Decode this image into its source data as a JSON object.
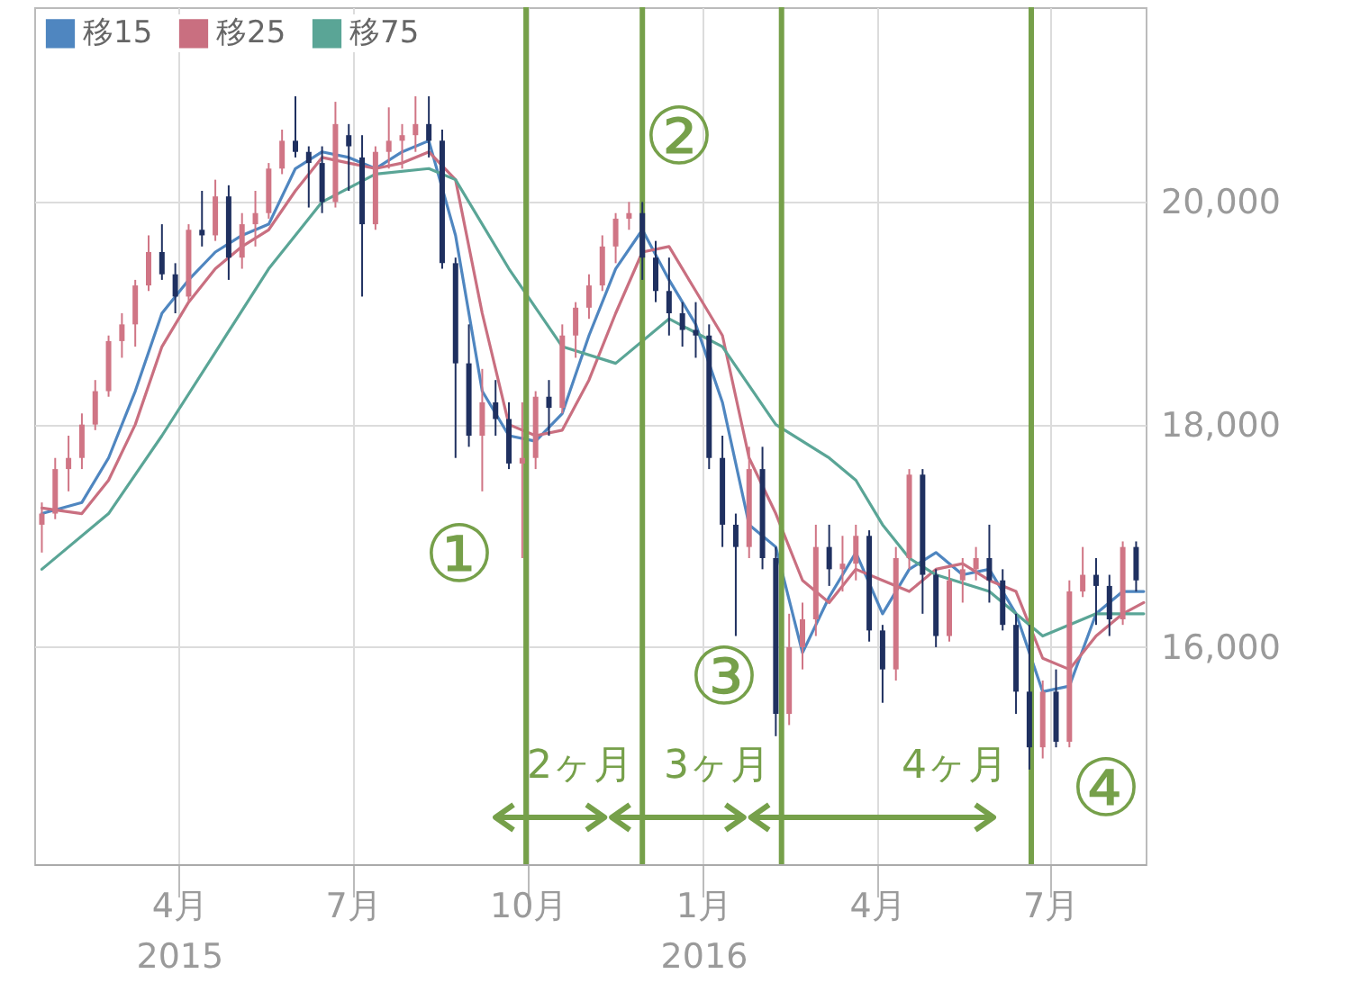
{
  "chart_data": {
    "type": "candlestick",
    "x": [
      "2015-01-19",
      "2015-01-26",
      "2015-02-02",
      "2015-02-09",
      "2015-02-16",
      "2015-02-23",
      "2015-03-02",
      "2015-03-09",
      "2015-03-16",
      "2015-03-23",
      "2015-03-30",
      "2015-04-06",
      "2015-04-13",
      "2015-04-20",
      "2015-04-27",
      "2015-05-04",
      "2015-05-11",
      "2015-05-18",
      "2015-05-25",
      "2015-06-01",
      "2015-06-08",
      "2015-06-15",
      "2015-06-22",
      "2015-06-29",
      "2015-07-06",
      "2015-07-13",
      "2015-07-20",
      "2015-07-27",
      "2015-08-03",
      "2015-08-10",
      "2015-08-17",
      "2015-08-24",
      "2015-08-31",
      "2015-09-07",
      "2015-09-14",
      "2015-09-21",
      "2015-09-28",
      "2015-10-05",
      "2015-10-12",
      "2015-10-19",
      "2015-10-26",
      "2015-11-02",
      "2015-11-09",
      "2015-11-16",
      "2015-11-23",
      "2015-11-30",
      "2015-12-07",
      "2015-12-14",
      "2015-12-21",
      "2015-12-28",
      "2016-01-04",
      "2016-01-11",
      "2016-01-18",
      "2016-01-25",
      "2016-02-01",
      "2016-02-08",
      "2016-02-15",
      "2016-02-22",
      "2016-02-29",
      "2016-03-07",
      "2016-03-14",
      "2016-03-21",
      "2016-03-28",
      "2016-04-04",
      "2016-04-11",
      "2016-04-18",
      "2016-04-25",
      "2016-05-02",
      "2016-05-09",
      "2016-05-16",
      "2016-05-23",
      "2016-05-30",
      "2016-06-06",
      "2016-06-13",
      "2016-06-20",
      "2016-06-27",
      "2016-07-04",
      "2016-07-11",
      "2016-07-18",
      "2016-07-25",
      "2016-08-01",
      "2016-08-08",
      "2016-08-15"
    ],
    "ohlc": [
      [
        17100,
        17300,
        16850,
        17200
      ],
      [
        17200,
        17700,
        17150,
        17600
      ],
      [
        17600,
        17900,
        17400,
        17700
      ],
      [
        17700,
        18100,
        17600,
        18000
      ],
      [
        18000,
        18400,
        17950,
        18300
      ],
      [
        18300,
        18800,
        18250,
        18750
      ],
      [
        18750,
        19000,
        18600,
        18900
      ],
      [
        18900,
        19300,
        18700,
        19250
      ],
      [
        19250,
        19700,
        19200,
        19550
      ],
      [
        19550,
        19800,
        19300,
        19350
      ],
      [
        19350,
        19450,
        19000,
        19150
      ],
      [
        19150,
        19800,
        19100,
        19750
      ],
      [
        19750,
        20100,
        19600,
        19700
      ],
      [
        19700,
        20200,
        19650,
        20050
      ],
      [
        20050,
        20150,
        19300,
        19500
      ],
      [
        19500,
        19900,
        19400,
        19800
      ],
      [
        19800,
        20100,
        19600,
        19900
      ],
      [
        19900,
        20350,
        19850,
        20300
      ],
      [
        20300,
        20650,
        20250,
        20550
      ],
      [
        20550,
        20950,
        20400,
        20450
      ],
      [
        20450,
        20500,
        19950,
        20350
      ],
      [
        20350,
        20500,
        19900,
        20000
      ],
      [
        20000,
        20900,
        19950,
        20700
      ],
      [
        20600,
        20700,
        20100,
        20500
      ],
      [
        20400,
        20600,
        19150,
        19800
      ],
      [
        19800,
        20500,
        19750,
        20450
      ],
      [
        20450,
        20850,
        20300,
        20550
      ],
      [
        20550,
        20700,
        20300,
        20600
      ],
      [
        20600,
        20950,
        20450,
        20700
      ],
      [
        20700,
        20950,
        20400,
        20550
      ],
      [
        20550,
        20650,
        19400,
        19450
      ],
      [
        19450,
        19500,
        17700,
        18550
      ],
      [
        18550,
        18900,
        17800,
        17900
      ],
      [
        17900,
        18500,
        17400,
        18200
      ],
      [
        18200,
        18400,
        17900,
        18050
      ],
      [
        18050,
        18200,
        17600,
        17650
      ],
      [
        17650,
        18200,
        16800,
        17700
      ],
      [
        17700,
        18300,
        17600,
        18250
      ],
      [
        18250,
        18400,
        17900,
        18150
      ],
      [
        18150,
        18900,
        18100,
        18800
      ],
      [
        18800,
        19100,
        18600,
        19050
      ],
      [
        19050,
        19350,
        18950,
        19250
      ],
      [
        19250,
        19700,
        19200,
        19600
      ],
      [
        19600,
        19900,
        19450,
        19850
      ],
      [
        19850,
        20000,
        19750,
        19900
      ],
      [
        19900,
        20000,
        19300,
        19500
      ],
      [
        19500,
        19650,
        19100,
        19200
      ],
      [
        19200,
        19500,
        18800,
        19000
      ],
      [
        19000,
        19100,
        18700,
        18850
      ],
      [
        18850,
        19100,
        18600,
        18800
      ],
      [
        18800,
        18900,
        17600,
        17700
      ],
      [
        17700,
        17900,
        16900,
        17100
      ],
      [
        17100,
        17200,
        16100,
        16900
      ],
      [
        16900,
        17800,
        16800,
        17600
      ],
      [
        17600,
        17800,
        16700,
        16800
      ],
      [
        16800,
        16900,
        15200,
        15400
      ],
      [
        15400,
        16300,
        15300,
        16000
      ],
      [
        16000,
        16400,
        15800,
        16250
      ],
      [
        16250,
        17100,
        16100,
        16900
      ],
      [
        16900,
        17100,
        16550,
        16700
      ],
      [
        16700,
        17000,
        16500,
        16750
      ],
      [
        16750,
        17100,
        16600,
        17000
      ],
      [
        17000,
        17050,
        16050,
        16150
      ],
      [
        16150,
        16200,
        15500,
        15800
      ],
      [
        15800,
        16900,
        15700,
        16800
      ],
      [
        16800,
        17600,
        16700,
        17550
      ],
      [
        17550,
        17600,
        16300,
        16650
      ],
      [
        16650,
        16700,
        16000,
        16100
      ],
      [
        16100,
        16700,
        16050,
        16600
      ],
      [
        16600,
        16800,
        16400,
        16700
      ],
      [
        16700,
        16900,
        16600,
        16800
      ],
      [
        16800,
        17100,
        16400,
        16600
      ],
      [
        16600,
        16700,
        16150,
        16200
      ],
      [
        16200,
        16300,
        15400,
        15600
      ],
      [
        15600,
        16200,
        14900,
        15100
      ],
      [
        15100,
        15700,
        15000,
        15600
      ],
      [
        15600,
        15800,
        15100,
        15150
      ],
      [
        15150,
        16600,
        15100,
        16500
      ],
      [
        16500,
        16900,
        16450,
        16650
      ],
      [
        16650,
        16800,
        16200,
        16550
      ],
      [
        16550,
        16650,
        16100,
        16250
      ],
      [
        16250,
        16950,
        16200,
        16900
      ],
      [
        16900,
        16950,
        16500,
        16600
      ]
    ],
    "colors": [
      "#d07585",
      "#d07585",
      "#d07585",
      "#d07585",
      "#d07585",
      "#d07585",
      "#d07585",
      "#d07585",
      "#d07585",
      "#1f3060",
      "#1f3060",
      "#d07585",
      "#1f3060",
      "#d07585",
      "#1f3060",
      "#d07585",
      "#d07585",
      "#d07585",
      "#d07585",
      "#1f3060",
      "#1f3060",
      "#1f3060",
      "#d07585",
      "#1f3060",
      "#1f3060",
      "#d07585",
      "#d07585",
      "#d07585",
      "#d07585",
      "#1f3060",
      "#1f3060",
      "#1f3060",
      "#1f3060",
      "#d07585",
      "#1f3060",
      "#1f3060",
      "#d07585",
      "#d07585",
      "#1f3060",
      "#d07585",
      "#d07585",
      "#d07585",
      "#d07585",
      "#d07585",
      "#d07585",
      "#1f3060",
      "#1f3060",
      "#1f3060",
      "#1f3060",
      "#1f3060",
      "#1f3060",
      "#1f3060",
      "#1f3060",
      "#d07585",
      "#1f3060",
      "#1f3060",
      "#d07585",
      "#d07585",
      "#d07585",
      "#1f3060",
      "#d07585",
      "#d07585",
      "#1f3060",
      "#1f3060",
      "#d07585",
      "#d07585",
      "#1f3060",
      "#1f3060",
      "#d07585",
      "#d07585",
      "#d07585",
      "#1f3060",
      "#1f3060",
      "#1f3060",
      "#1f3060",
      "#d07585",
      "#1f3060",
      "#d07585",
      "#d07585",
      "#1f3060",
      "#1f3060",
      "#d07585",
      "#1f3060"
    ],
    "series": [
      {
        "name": "移15",
        "type": "line",
        "color": "#4f86c0",
        "x": [
          "2015-01-19",
          "2015-02-09",
          "2015-02-23",
          "2015-03-09",
          "2015-03-23",
          "2015-04-06",
          "2015-04-20",
          "2015-05-04",
          "2015-05-18",
          "2015-06-01",
          "2015-06-15",
          "2015-06-29",
          "2015-07-13",
          "2015-07-27",
          "2015-08-10",
          "2015-08-24",
          "2015-09-07",
          "2015-09-21",
          "2015-10-05",
          "2015-10-19",
          "2015-11-02",
          "2015-11-16",
          "2015-11-30",
          "2015-12-14",
          "2015-12-28",
          "2016-01-11",
          "2016-01-25",
          "2016-02-08",
          "2016-02-22",
          "2016-03-07",
          "2016-03-21",
          "2016-04-04",
          "2016-04-18",
          "2016-05-02",
          "2016-05-16",
          "2016-05-30",
          "2016-06-13",
          "2016-06-27",
          "2016-07-11",
          "2016-07-25",
          "2016-08-08",
          "2016-08-19"
        ],
        "values": [
          17200,
          17300,
          17700,
          18300,
          19000,
          19300,
          19550,
          19700,
          19800,
          20300,
          20450,
          20400,
          20300,
          20450,
          20550,
          19700,
          18300,
          17900,
          17850,
          18100,
          18800,
          19400,
          19750,
          19300,
          18900,
          18200,
          17100,
          16900,
          15950,
          16450,
          16850,
          16300,
          16700,
          16850,
          16650,
          16700,
          16300,
          15600,
          15650,
          16300,
          16500,
          16500
        ]
      },
      {
        "name": "移25",
        "type": "line",
        "color": "#c96f80",
        "x": [
          "2015-01-19",
          "2015-02-09",
          "2015-02-23",
          "2015-03-09",
          "2015-03-23",
          "2015-04-06",
          "2015-04-20",
          "2015-05-04",
          "2015-05-18",
          "2015-06-01",
          "2015-06-15",
          "2015-06-29",
          "2015-07-13",
          "2015-07-27",
          "2015-08-10",
          "2015-08-24",
          "2015-09-07",
          "2015-09-21",
          "2015-10-05",
          "2015-10-19",
          "2015-11-02",
          "2015-11-16",
          "2015-11-30",
          "2015-12-14",
          "2015-12-28",
          "2016-01-11",
          "2016-01-25",
          "2016-02-08",
          "2016-02-22",
          "2016-03-07",
          "2016-03-21",
          "2016-04-04",
          "2016-04-18",
          "2016-05-02",
          "2016-05-16",
          "2016-05-30",
          "2016-06-13",
          "2016-06-27",
          "2016-07-11",
          "2016-07-25",
          "2016-08-08",
          "2016-08-19"
        ],
        "values": [
          17250,
          17200,
          17500,
          18000,
          18700,
          19100,
          19400,
          19600,
          19750,
          20100,
          20400,
          20350,
          20300,
          20350,
          20450,
          20200,
          19000,
          18000,
          17900,
          17950,
          18400,
          19000,
          19550,
          19600,
          19200,
          18800,
          17700,
          17200,
          16600,
          16400,
          16700,
          16600,
          16500,
          16700,
          16750,
          16600,
          16500,
          15900,
          15800,
          16100,
          16300,
          16400
        ]
      },
      {
        "name": "移75",
        "type": "line",
        "color": "#5aa596",
        "x": [
          "2015-01-19",
          "2015-02-23",
          "2015-03-23",
          "2015-04-20",
          "2015-05-18",
          "2015-06-15",
          "2015-07-13",
          "2015-08-10",
          "2015-08-24",
          "2015-09-21",
          "2015-10-19",
          "2015-11-16",
          "2015-12-14",
          "2016-01-11",
          "2016-02-08",
          "2016-03-07",
          "2016-03-21",
          "2016-04-04",
          "2016-04-18",
          "2016-05-02",
          "2016-05-30",
          "2016-06-27",
          "2016-07-25",
          "2016-08-19"
        ],
        "values": [
          16700,
          17200,
          17900,
          18650,
          19400,
          20000,
          20250,
          20300,
          20200,
          19400,
          18700,
          18550,
          18950,
          18700,
          18000,
          17700,
          17500,
          17100,
          16800,
          16650,
          16500,
          16100,
          16300,
          16300
        ]
      }
    ],
    "xlim": [
      "2015-01-15",
      "2016-08-20"
    ],
    "xticks": [
      {
        "value": "2015-04-01",
        "label": "4月\n2015"
      },
      {
        "value": "2015-07-01",
        "label": "7月"
      },
      {
        "value": "2015-10-01",
        "label": "10月"
      },
      {
        "value": "2016-01-01",
        "label": "1月\n2016"
      },
      {
        "value": "2016-04-01",
        "label": "4月"
      },
      {
        "value": "2016-07-01",
        "label": "7月"
      }
    ],
    "ylim": [
      14050,
      21750
    ],
    "yticks": [
      {
        "value": 16000,
        "label": "16,000"
      },
      {
        "value": 18000,
        "label": "18,000"
      },
      {
        "value": 20000,
        "label": "20,000"
      }
    ],
    "grid": true,
    "legend": "top left",
    "ref_lines": [
      {
        "axis": "x",
        "value": "2015-09-30",
        "color": "#76a04a"
      },
      {
        "axis": "x",
        "value": "2015-11-30",
        "color": "#76a04a"
      },
      {
        "axis": "x",
        "value": "2016-02-11",
        "color": "#76a04a"
      },
      {
        "axis": "x",
        "value": "2016-06-21",
        "color": "#76a04a"
      }
    ],
    "annotations": [
      "①",
      "②",
      "③",
      "④",
      "2ヶ月",
      "3ヶ月",
      "4ヶ月"
    ]
  }
}
